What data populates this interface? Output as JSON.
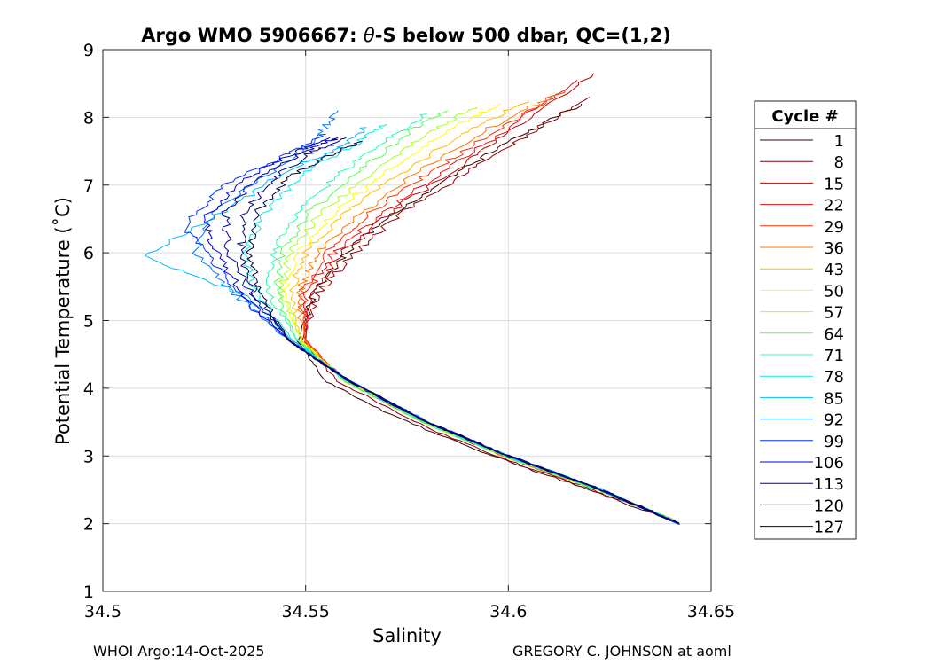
{
  "chart_data": {
    "type": "line",
    "title_prefix": "Argo WMO 5906667: ",
    "title_theta": "θ",
    "title_suffix": "-S below 500 dbar,  QC=(1,2)",
    "xlabel": "Salinity",
    "ylabel": "Potential Temperature (˚C)",
    "xlim": [
      34.5,
      34.65
    ],
    "ylim": [
      1,
      9
    ],
    "xticks": [
      34.5,
      34.55,
      34.6,
      34.65
    ],
    "xtick_labels": [
      "34.5",
      "34.55",
      "34.6",
      "34.65"
    ],
    "yticks": [
      1,
      2,
      3,
      4,
      5,
      6,
      7,
      8,
      9
    ],
    "ytick_labels": [
      "1",
      "2",
      "3",
      "4",
      "5",
      "6",
      "7",
      "8",
      "9"
    ],
    "grid": true,
    "legend": {
      "title": "Cycle #",
      "placement": "outside-right",
      "entries": [
        {
          "label": "1",
          "color": "#3a0000"
        },
        {
          "label": "8",
          "color": "#8b0000"
        },
        {
          "label": "15",
          "color": "#c00000"
        },
        {
          "label": "22",
          "color": "#e81010"
        },
        {
          "label": "29",
          "color": "#ff3300"
        },
        {
          "label": "36",
          "color": "#ff7700"
        },
        {
          "label": "43",
          "color": "#ffbb00"
        },
        {
          "label": "50",
          "color": "#ffff00"
        },
        {
          "label": "57",
          "color": "#aaff22"
        },
        {
          "label": "64",
          "color": "#55ff55"
        },
        {
          "label": "71",
          "color": "#22ffaa"
        },
        {
          "label": "78",
          "color": "#00eedd"
        },
        {
          "label": "85",
          "color": "#00bbff"
        },
        {
          "label": "92",
          "color": "#0077ff"
        },
        {
          "label": "99",
          "color": "#0033ff"
        },
        {
          "label": "106",
          "color": "#0000dd"
        },
        {
          "label": "113",
          "color": "#0000aa"
        },
        {
          "label": "120",
          "color": "#000077"
        },
        {
          "label": "127",
          "color": "#000044"
        }
      ]
    },
    "series": [
      {
        "name": "1",
        "color": "#3a0000",
        "S": [
          34.64,
          34.62,
          34.596,
          34.575,
          34.555,
          34.548,
          34.552,
          34.56,
          34.572,
          34.588,
          34.602,
          34.618
        ],
        "T": [
          2.05,
          2.5,
          3.0,
          3.5,
          4.1,
          4.7,
          5.4,
          6.0,
          6.6,
          7.2,
          7.7,
          8.2
        ]
      },
      {
        "name": "8",
        "color": "#8b0000",
        "S": [
          34.64,
          34.621,
          34.597,
          34.577,
          34.558,
          34.549,
          34.553,
          34.562,
          34.574,
          34.59,
          34.605,
          34.62
        ],
        "T": [
          2.05,
          2.5,
          3.0,
          3.5,
          4.1,
          4.7,
          5.4,
          6.0,
          6.6,
          7.2,
          7.75,
          8.3
        ]
      },
      {
        "name": "15",
        "color": "#c00000",
        "S": [
          34.641,
          34.622,
          34.599,
          34.579,
          34.56,
          34.55,
          34.551,
          34.559,
          34.571,
          34.586,
          34.601,
          34.621
        ],
        "T": [
          2.05,
          2.5,
          3.0,
          3.5,
          4.1,
          4.7,
          5.4,
          6.0,
          6.6,
          7.2,
          7.8,
          8.65
        ]
      },
      {
        "name": "22",
        "color": "#e81010",
        "S": [
          34.641,
          34.622,
          34.599,
          34.579,
          34.56,
          34.55,
          34.55,
          34.557,
          34.569,
          34.584,
          34.599,
          34.617
        ],
        "T": [
          2.05,
          2.5,
          3.0,
          3.5,
          4.1,
          4.7,
          5.4,
          6.0,
          6.6,
          7.2,
          7.8,
          8.55
        ]
      },
      {
        "name": "29",
        "color": "#ff3300",
        "S": [
          34.641,
          34.622,
          34.599,
          34.579,
          34.56,
          34.55,
          34.549,
          34.555,
          34.566,
          34.581,
          34.597,
          34.614
        ],
        "T": [
          2.05,
          2.5,
          3.0,
          3.5,
          4.1,
          4.7,
          5.4,
          6.0,
          6.6,
          7.2,
          7.8,
          8.4
        ]
      },
      {
        "name": "36",
        "color": "#ff7700",
        "S": [
          34.641,
          34.622,
          34.599,
          34.579,
          34.56,
          34.55,
          34.548,
          34.553,
          34.564,
          34.578,
          34.594,
          34.612
        ],
        "T": [
          2.05,
          2.5,
          3.0,
          3.5,
          4.1,
          4.7,
          5.4,
          6.0,
          6.6,
          7.2,
          7.8,
          8.35
        ]
      },
      {
        "name": "43",
        "color": "#ffbb00",
        "S": [
          34.641,
          34.622,
          34.599,
          34.579,
          34.56,
          34.549,
          34.546,
          34.55,
          34.56,
          34.574,
          34.59,
          34.605
        ],
        "T": [
          2.05,
          2.5,
          3.0,
          3.5,
          4.1,
          4.7,
          5.4,
          6.0,
          6.6,
          7.2,
          7.8,
          8.25
        ]
      },
      {
        "name": "50",
        "color": "#ffff00",
        "S": [
          34.641,
          34.622,
          34.599,
          34.579,
          34.56,
          34.549,
          34.545,
          34.548,
          34.557,
          34.57,
          34.585,
          34.598
        ],
        "T": [
          2.05,
          2.5,
          3.0,
          3.5,
          4.1,
          4.7,
          5.4,
          6.0,
          6.6,
          7.2,
          7.8,
          8.2
        ]
      },
      {
        "name": "57",
        "color": "#aaff22",
        "S": [
          34.641,
          34.622,
          34.599,
          34.579,
          34.56,
          34.549,
          34.544,
          34.546,
          34.554,
          34.567,
          34.581,
          34.592
        ],
        "T": [
          2.05,
          2.5,
          3.0,
          3.5,
          4.1,
          4.7,
          5.4,
          6.0,
          6.6,
          7.2,
          7.8,
          8.15
        ]
      },
      {
        "name": "64",
        "color": "#55ff55",
        "S": [
          34.641,
          34.622,
          34.599,
          34.579,
          34.56,
          34.548,
          34.543,
          34.544,
          34.551,
          34.563,
          34.576,
          34.585
        ],
        "T": [
          2.05,
          2.5,
          3.0,
          3.5,
          4.1,
          4.7,
          5.4,
          6.0,
          6.6,
          7.2,
          7.8,
          8.1
        ]
      },
      {
        "name": "71",
        "color": "#22ffaa",
        "S": [
          34.641,
          34.622,
          34.599,
          34.579,
          34.56,
          34.548,
          34.541,
          34.542,
          34.548,
          34.559,
          34.571,
          34.58
        ],
        "T": [
          2.05,
          2.5,
          3.0,
          3.5,
          4.1,
          4.7,
          5.4,
          6.0,
          6.6,
          7.2,
          7.7,
          8.05
        ]
      },
      {
        "name": "78",
        "color": "#00eedd",
        "S": [
          34.642,
          34.623,
          34.6,
          34.58,
          34.561,
          34.547,
          34.538,
          34.535,
          34.54,
          34.55,
          34.562,
          34.57
        ],
        "T": [
          2.0,
          2.5,
          3.0,
          3.5,
          4.1,
          4.7,
          5.4,
          6.0,
          6.6,
          7.2,
          7.6,
          7.9
        ]
      },
      {
        "name": "85",
        "color": "#00bbff",
        "S": [
          34.642,
          34.623,
          34.6,
          34.58,
          34.561,
          34.547,
          34.536,
          34.51,
          34.53,
          34.545,
          34.558,
          34.565
        ],
        "T": [
          2.0,
          2.5,
          3.0,
          3.5,
          4.1,
          4.7,
          5.35,
          5.95,
          6.6,
          7.2,
          7.55,
          7.85
        ]
      },
      {
        "name": "92",
        "color": "#0077ff",
        "S": [
          34.642,
          34.623,
          34.6,
          34.58,
          34.561,
          34.546,
          34.533,
          34.523,
          34.527,
          34.542,
          34.552,
          34.558
        ],
        "T": [
          2.0,
          2.5,
          3.0,
          3.5,
          4.1,
          4.7,
          5.35,
          6.0,
          6.6,
          7.2,
          7.65,
          8.1
        ]
      },
      {
        "name": "99",
        "color": "#0033ff",
        "S": [
          34.642,
          34.623,
          34.6,
          34.58,
          34.561,
          34.546,
          34.534,
          34.526,
          34.52,
          34.53,
          34.545,
          34.555
        ],
        "T": [
          2.0,
          2.5,
          3.0,
          3.5,
          4.1,
          4.7,
          5.35,
          6.0,
          6.4,
          7.0,
          7.45,
          7.75
        ]
      },
      {
        "name": "106",
        "color": "#0000dd",
        "S": [
          34.642,
          34.623,
          34.6,
          34.58,
          34.561,
          34.546,
          34.535,
          34.528,
          34.525,
          34.535,
          34.548,
          34.556
        ],
        "T": [
          2.0,
          2.5,
          3.0,
          3.5,
          4.1,
          4.7,
          5.35,
          6.0,
          6.5,
          7.1,
          7.5,
          7.7
        ]
      },
      {
        "name": "113",
        "color": "#0000aa",
        "S": [
          34.642,
          34.623,
          34.6,
          34.58,
          34.561,
          34.546,
          34.537,
          34.531,
          34.53,
          34.538,
          34.55,
          34.558
        ],
        "T": [
          2.0,
          2.5,
          3.0,
          3.5,
          4.1,
          4.7,
          5.35,
          6.0,
          6.6,
          7.1,
          7.5,
          7.7
        ]
      },
      {
        "name": "120",
        "color": "#000077",
        "S": [
          34.642,
          34.623,
          34.6,
          34.58,
          34.561,
          34.546,
          34.538,
          34.534,
          34.535,
          34.542,
          34.552,
          34.56
        ],
        "T": [
          2.0,
          2.5,
          3.0,
          3.5,
          4.1,
          4.7,
          5.35,
          6.0,
          6.6,
          7.1,
          7.5,
          7.7
        ]
      },
      {
        "name": "127",
        "color": "#000044",
        "S": [
          34.642,
          34.623,
          34.6,
          34.58,
          34.561,
          34.546,
          34.539,
          34.536,
          34.538,
          34.546,
          34.556,
          34.564
        ],
        "T": [
          2.0,
          2.5,
          3.0,
          3.5,
          4.1,
          4.7,
          5.35,
          6.0,
          6.6,
          7.1,
          7.45,
          7.65
        ]
      }
    ]
  },
  "footer": {
    "left": "WHOI Argo:14-Oct-2025",
    "right": "GREGORY C. JOHNSON at aoml"
  }
}
